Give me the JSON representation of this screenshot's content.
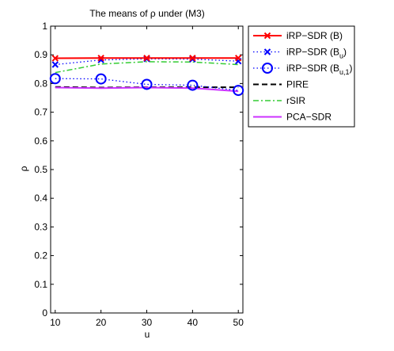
{
  "chart_data": {
    "type": "line",
    "title": "The means of ρ under (M3)",
    "xlabel": "u",
    "ylabel": "ρ",
    "x": [
      10,
      20,
      30,
      40,
      50
    ],
    "xlim": [
      9,
      51
    ],
    "ylim": [
      0,
      1
    ],
    "xticks": [
      "10",
      "20",
      "30",
      "40",
      "50"
    ],
    "yticks": [
      "0",
      "0.1",
      "0.2",
      "0.3",
      "0.4",
      "0.5",
      "0.6",
      "0.7",
      "0.8",
      "0.9",
      "1"
    ],
    "grid": false,
    "legend_position": "outside-top-right",
    "series": [
      {
        "name": "iRP−SDR (B)",
        "legend_main": "iRP−SDR (B",
        "legend_sub": "",
        "legend_close": ")",
        "values": [
          0.888,
          0.889,
          0.889,
          0.889,
          0.889
        ],
        "color": "#ff0000",
        "dash": "",
        "marker": "x",
        "width": 2
      },
      {
        "name": "iRP−SDR (Bu)",
        "legend_main": "iRP−SDR (B",
        "legend_sub": "u",
        "legend_close": ")",
        "values": [
          0.866,
          0.882,
          0.886,
          0.885,
          0.878
        ],
        "color": "#0000ff",
        "dash": "1.5,3",
        "marker": "x",
        "width": 1.3
      },
      {
        "name": "iRP−SDR (Bu,1)",
        "legend_main": "iRP−SDR (B",
        "legend_sub": "u,1",
        "legend_close": ")",
        "values": [
          0.817,
          0.816,
          0.797,
          0.794,
          0.776
        ],
        "color": "#0000ff",
        "dash": "1.5,3",
        "marker": "o",
        "width": 1.3
      },
      {
        "name": "PIRE",
        "legend_main": "PIRE",
        "legend_sub": "",
        "legend_close": "",
        "values": [
          0.788,
          0.786,
          0.787,
          0.787,
          0.787
        ],
        "color": "#000000",
        "dash": "7,4",
        "marker": "none",
        "width": 2
      },
      {
        "name": "rSIR",
        "legend_main": "rSIR",
        "legend_sub": "",
        "legend_close": "",
        "values": [
          0.838,
          0.868,
          0.876,
          0.875,
          0.866
        ],
        "color": "#33cc33",
        "dash": "7,3,2,3",
        "marker": "none",
        "width": 1.5
      },
      {
        "name": "PCA−SDR",
        "legend_main": "PCA−SDR",
        "legend_sub": "",
        "legend_close": "",
        "values": [
          0.786,
          0.784,
          0.786,
          0.784,
          0.773
        ],
        "color": "#cc33ff",
        "dash": "",
        "marker": "none",
        "width": 2
      }
    ]
  }
}
